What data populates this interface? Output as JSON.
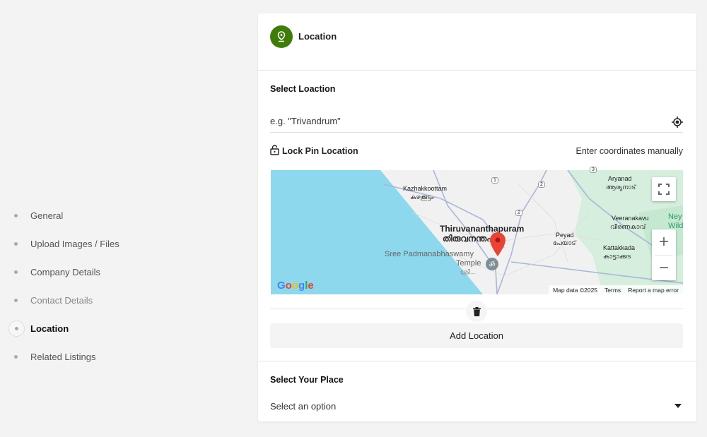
{
  "sidebar": {
    "items": [
      {
        "label": "General",
        "state": "normal"
      },
      {
        "label": "Upload Images / Files",
        "state": "normal"
      },
      {
        "label": "Company Details",
        "state": "normal"
      },
      {
        "label": "Contact Details",
        "state": "muted"
      },
      {
        "label": "Location",
        "state": "active"
      },
      {
        "label": "Related Listings",
        "state": "normal"
      }
    ]
  },
  "section": {
    "title": "Location",
    "icon": "map-pin-icon",
    "accent": "#3f7d0a"
  },
  "location": {
    "label": "Select Loaction",
    "placeholder": "e.g. \"Trivandrum\"",
    "lock_label": "Lock Pin Location",
    "manual_link": "Enter coordinates manually",
    "add_button": "Add Location"
  },
  "map": {
    "labels": {
      "kazhakkoottam": "Kazhakkoottam",
      "kazhakkoottam_ml": "കഴക്കൂട്ടം",
      "aryanad": "Aryanad",
      "aryanad_ml": "ആര്യനാട്",
      "city": "Thiruvananthapuram",
      "city_ml": "തിരുവനന്തപുരം",
      "temple": "Sree Padmanabhaswamy",
      "temple2": "Temple",
      "temple_ml": "ശ്രീ...",
      "peyad": "Peyad",
      "peyad_ml": "പേയാട്",
      "veeranakavu": "Veeranakavu",
      "veeranakavu_ml": "വീരണകാവ്",
      "kattakkada": "Kattakkada",
      "kattakkada_ml": "കാട്ടാക്കട",
      "ney": "Ney",
      "wild": "Wild",
      "r1": "1",
      "r2": "2",
      "r2b": "2",
      "r3": "3"
    },
    "google": "Google",
    "map_data": "Map data ©2025",
    "terms": "Terms",
    "report": "Report a map error",
    "zoom_in": "+",
    "zoom_out": "−"
  },
  "place": {
    "label": "Select Your Place",
    "value": "Select an option"
  }
}
